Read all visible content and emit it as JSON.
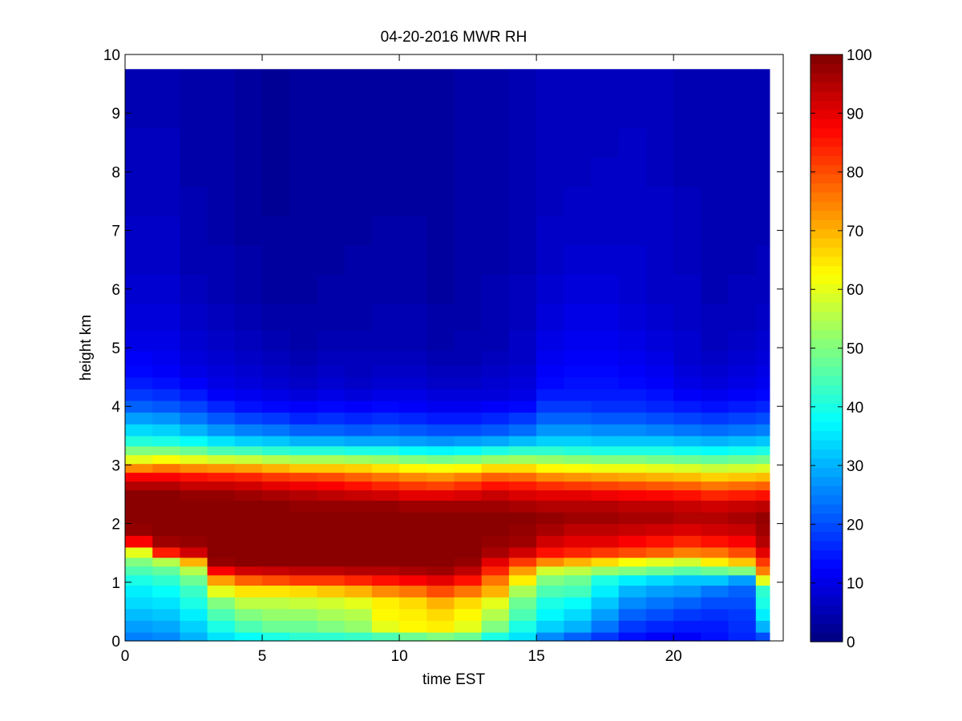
{
  "chart_data": {
    "type": "heatmap",
    "title": "04-20-2016 MWR RH",
    "xlabel": "time EST",
    "ylabel": "height km",
    "xlim": [
      0,
      24
    ],
    "ylim": [
      0,
      10
    ],
    "x_ticks": [
      0,
      5,
      10,
      15,
      20
    ],
    "y_ticks": [
      0,
      1,
      2,
      3,
      4,
      5,
      6,
      7,
      8,
      9,
      10
    ],
    "colorbar": {
      "range": [
        0,
        100
      ],
      "ticks": [
        0,
        10,
        20,
        30,
        40,
        50,
        60,
        70,
        80,
        90,
        100
      ],
      "colormap": "jet"
    },
    "x": [
      0.5,
      1.5,
      2.5,
      3.5,
      4.5,
      5.5,
      6.5,
      7.5,
      8.5,
      9.5,
      10.5,
      11.5,
      12.5,
      13.5,
      14.5,
      15.5,
      16.5,
      17.5,
      18.5,
      19.5,
      20.5,
      21.5,
      22.5,
      23.5
    ],
    "heights": [
      0.05,
      0.25,
      0.45,
      0.65,
      0.85,
      1.05,
      1.2,
      1.35,
      1.5,
      1.7,
      1.9,
      2.1,
      2.3,
      2.5,
      2.65,
      2.8,
      2.95,
      3.1,
      3.25,
      3.4,
      3.6,
      3.8,
      4.0,
      4.2,
      4.4,
      4.6,
      4.8,
      5.1,
      5.5,
      6.0,
      6.5,
      7.0,
      7.5,
      8.0,
      8.5,
      9.0,
      9.5
    ],
    "values": [
      [
        25,
        28,
        31,
        34,
        36,
        40,
        45,
        50,
        60,
        88,
        98,
        99,
        99,
        99,
        95,
        88,
        74,
        60,
        50,
        41,
        34,
        28,
        22,
        18,
        15,
        13,
        12,
        10,
        9,
        8,
        7,
        7,
        6,
        6,
        6,
        5,
        5
      ],
      [
        26,
        29,
        32,
        35,
        38,
        42,
        47,
        55,
        85,
        97,
        99,
        99,
        99,
        99,
        95,
        88,
        76,
        62,
        50,
        40,
        33,
        27,
        21,
        17,
        14,
        12,
        11,
        10,
        9,
        8,
        7,
        7,
        6,
        6,
        6,
        5,
        5
      ],
      [
        30,
        33,
        36,
        40,
        43,
        48,
        55,
        70,
        92,
        98,
        99,
        99,
        99,
        98,
        93,
        86,
        74,
        60,
        48,
        38,
        30,
        24,
        19,
        15,
        12,
        10,
        9,
        8,
        7,
        6,
        5,
        5,
        5,
        4,
        4,
        4,
        4
      ],
      [
        35,
        40,
        45,
        50,
        60,
        72,
        88,
        98,
        99,
        99,
        99,
        99,
        99,
        98,
        93,
        85,
        73,
        58,
        45,
        35,
        27,
        21,
        16,
        12,
        10,
        9,
        8,
        7,
        6,
        5,
        5,
        4,
        4,
        4,
        4,
        4,
        4
      ],
      [
        38,
        45,
        50,
        56,
        65,
        78,
        92,
        99,
        99,
        99,
        99,
        99,
        99,
        97,
        92,
        84,
        72,
        57,
        44,
        33,
        25,
        19,
        14,
        11,
        9,
        8,
        7,
        6,
        5,
        4,
        4,
        3,
        3,
        3,
        3,
        3,
        3
      ],
      [
        40,
        48,
        52,
        56,
        65,
        80,
        93,
        99,
        99,
        99,
        99,
        99,
        99,
        96,
        90,
        82,
        70,
        55,
        42,
        32,
        24,
        18,
        13,
        10,
        8,
        7,
        6,
        5,
        4,
        3,
        3,
        3,
        2,
        2,
        2,
        2,
        2
      ],
      [
        42,
        48,
        52,
        57,
        66,
        82,
        94,
        99,
        99,
        99,
        99,
        99,
        98,
        95,
        89,
        81,
        68,
        54,
        41,
        30,
        22,
        16,
        12,
        9,
        7,
        6,
        5,
        4,
        4,
        3,
        3,
        3,
        3,
        3,
        3,
        3,
        3
      ],
      [
        42,
        50,
        54,
        58,
        68,
        82,
        94,
        99,
        99,
        99,
        99,
        99,
        98,
        94,
        88,
        80,
        68,
        54,
        41,
        30,
        22,
        17,
        13,
        10,
        8,
        7,
        6,
        5,
        4,
        4,
        3,
        3,
        3,
        3,
        3,
        3,
        3
      ],
      [
        43,
        52,
        55,
        60,
        70,
        84,
        95,
        99,
        99,
        99,
        99,
        99,
        98,
        93,
        86,
        78,
        67,
        53,
        40,
        29,
        21,
        16,
        12,
        9,
        7,
        6,
        6,
        5,
        4,
        4,
        4,
        3,
        3,
        3,
        3,
        3,
        3
      ],
      [
        45,
        60,
        63,
        64,
        74,
        86,
        95,
        99,
        99,
        99,
        99,
        99,
        98,
        92,
        84,
        76,
        65,
        52,
        40,
        29,
        22,
        17,
        13,
        10,
        8,
        7,
        6,
        5,
        5,
        4,
        4,
        4,
        3,
        3,
        3,
        3,
        3
      ],
      [
        48,
        63,
        64,
        66,
        76,
        88,
        96,
        99,
        99,
        99,
        99,
        99,
        97,
        90,
        82,
        74,
        63,
        50,
        38,
        28,
        21,
        16,
        12,
        10,
        8,
        7,
        6,
        5,
        5,
        4,
        4,
        4,
        3,
        3,
        3,
        3,
        3
      ],
      [
        50,
        64,
        66,
        70,
        80,
        90,
        97,
        99,
        99,
        99,
        99,
        99,
        97,
        90,
        81,
        73,
        62,
        49,
        37,
        27,
        20,
        15,
        11,
        9,
        7,
        6,
        5,
        4,
        4,
        3,
        3,
        3,
        3,
        3,
        3,
        3,
        3
      ],
      [
        48,
        60,
        63,
        66,
        76,
        86,
        94,
        98,
        99,
        99,
        99,
        99,
        97,
        91,
        83,
        75,
        63,
        50,
        38,
        28,
        20,
        15,
        11,
        9,
        7,
        6,
        5,
        5,
        4,
        4,
        4,
        4,
        4,
        4,
        4,
        4,
        4
      ],
      [
        40,
        50,
        55,
        60,
        70,
        76,
        84,
        90,
        96,
        98,
        99,
        99,
        97,
        93,
        86,
        78,
        66,
        52,
        40,
        29,
        21,
        16,
        12,
        9,
        8,
        7,
        6,
        5,
        5,
        5,
        4,
        4,
        4,
        4,
        4,
        4,
        4
      ],
      [
        35,
        40,
        45,
        48,
        54,
        64,
        72,
        82,
        92,
        97,
        98,
        99,
        96,
        91,
        85,
        77,
        66,
        53,
        42,
        31,
        23,
        18,
        13,
        10,
        9,
        8,
        7,
        7,
        6,
        6,
        5,
        5,
        5,
        5,
        5,
        5,
        5
      ],
      [
        26,
        33,
        37,
        40,
        45,
        50,
        58,
        74,
        86,
        92,
        96,
        98,
        95,
        90,
        83,
        74,
        63,
        52,
        42,
        33,
        27,
        22,
        18,
        15,
        13,
        12,
        11,
        10,
        9,
        8,
        7,
        7,
        6,
        6,
        6,
        6,
        6
      ],
      [
        22,
        30,
        34,
        38,
        44,
        48,
        56,
        70,
        84,
        90,
        94,
        97,
        95,
        90,
        82,
        73,
        62,
        51,
        41,
        33,
        27,
        22,
        18,
        15,
        14,
        13,
        12,
        11,
        10,
        9,
        8,
        7,
        7,
        6,
        6,
        6,
        6
      ],
      [
        18,
        24,
        28,
        32,
        36,
        40,
        52,
        66,
        82,
        90,
        94,
        97,
        95,
        89,
        81,
        72,
        61,
        50,
        40,
        32,
        26,
        21,
        17,
        15,
        14,
        13,
        12,
        11,
        10,
        9,
        8,
        7,
        7,
        7,
        6,
        6,
        6
      ],
      [
        14,
        18,
        22,
        26,
        30,
        36,
        50,
        62,
        80,
        88,
        93,
        96,
        94,
        88,
        80,
        71,
        61,
        50,
        40,
        32,
        26,
        21,
        17,
        15,
        13,
        12,
        11,
        10,
        9,
        8,
        8,
        7,
        7,
        7,
        7,
        6,
        6
      ],
      [
        12,
        16,
        20,
        24,
        28,
        34,
        48,
        60,
        78,
        86,
        92,
        96,
        94,
        87,
        79,
        70,
        60,
        49,
        40,
        32,
        25,
        20,
        16,
        14,
        12,
        11,
        10,
        9,
        8,
        7,
        7,
        7,
        7,
        6,
        6,
        6,
        6
      ],
      [
        12,
        15,
        18,
        22,
        27,
        32,
        46,
        58,
        75,
        84,
        91,
        95,
        93,
        86,
        78,
        69,
        59,
        48,
        39,
        31,
        24,
        19,
        15,
        12,
        10,
        9,
        8,
        8,
        7,
        7,
        6,
        6,
        6,
        5,
        5,
        5,
        5
      ],
      [
        14,
        15,
        17,
        20,
        24,
        32,
        48,
        64,
        76,
        86,
        92,
        95,
        92,
        84,
        76,
        67,
        57,
        47,
        38,
        30,
        23,
        18,
        14,
        11,
        9,
        8,
        7,
        6,
        6,
        5,
        5,
        5,
        5,
        5,
        5,
        5,
        5
      ],
      [
        16,
        17,
        18,
        20,
        22,
        28,
        50,
        68,
        80,
        88,
        93,
        96,
        93,
        85,
        77,
        68,
        58,
        48,
        39,
        31,
        24,
        19,
        15,
        12,
        10,
        9,
        8,
        7,
        6,
        6,
        5,
        5,
        5,
        5,
        5,
        5,
        5
      ],
      [
        20,
        30,
        36,
        40,
        42,
        60,
        75,
        82,
        90,
        95,
        97,
        98,
        94,
        86,
        78,
        69,
        59,
        49,
        40,
        32,
        25,
        20,
        16,
        13,
        11,
        10,
        9,
        8,
        7,
        6,
        6,
        5,
        5,
        5,
        5,
        5,
        5
      ]
    ]
  }
}
